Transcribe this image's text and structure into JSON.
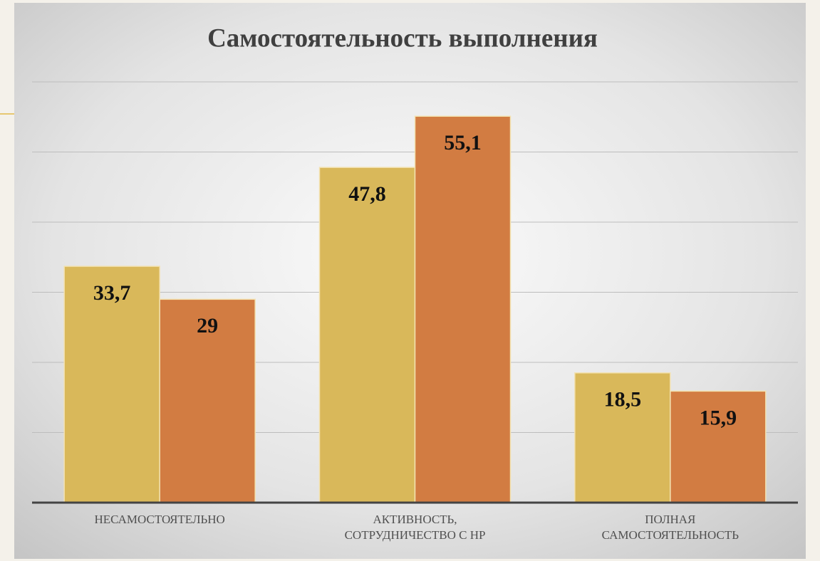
{
  "chart_data": {
    "type": "bar",
    "title": "Самостоятельность выполнения",
    "categories": [
      "НЕСАМОСТОЯТЕЛЬНО",
      "АКТИВНОСТЬ, СОТРУДНИЧЕСТВО С НР",
      "ПОЛНАЯ САМОСТОЯТЕЛЬНОСТЬ"
    ],
    "series": [
      {
        "color": "#d9b85a",
        "values": [
          33.7,
          47.8,
          18.5
        ],
        "value_labels": [
          "33,7",
          "47,8",
          "18,5"
        ]
      },
      {
        "color": "#d27c42",
        "values": [
          29,
          55.1,
          15.9
        ],
        "value_labels": [
          "29",
          "55,1",
          "15,9"
        ]
      }
    ],
    "ylim": [
      0,
      60
    ],
    "yticks": [
      0,
      10,
      20,
      30,
      40,
      50,
      60
    ],
    "grid": true
  }
}
